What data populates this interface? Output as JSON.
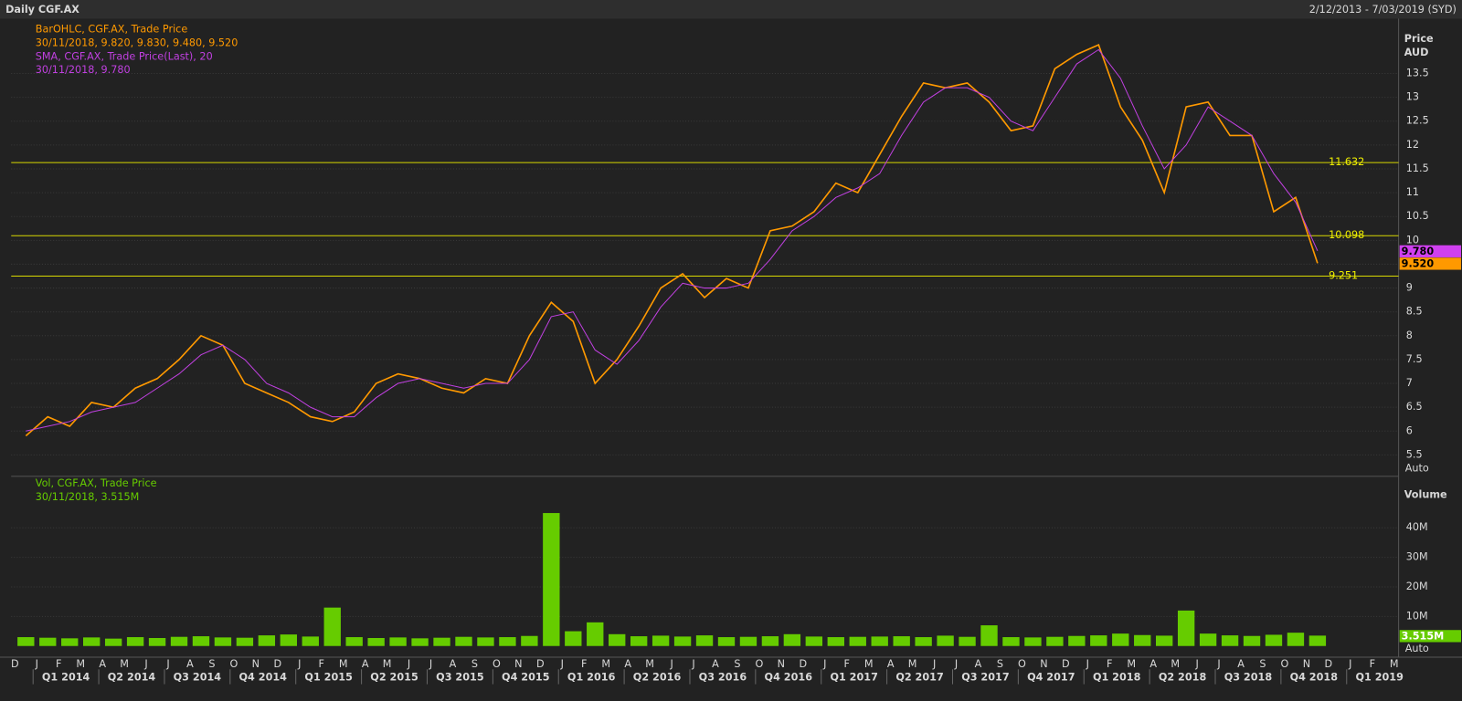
{
  "header": {
    "title": "Daily CGF.AX",
    "range": "2/12/2013 - 7/03/2019 (SYD)"
  },
  "chart_data": [
    {
      "type": "line",
      "axis_title": "Price",
      "axis_unit": "AUD",
      "auto": "Auto",
      "legend": [
        "BarOHLC, CGF.AX, Trade Price",
        "30/11/2018, 9.820, 9.830, 9.480, 9.520",
        "SMA, CGF.AX, Trade Price(Last),  20",
        "30/11/2018, 9.780"
      ],
      "x": [
        "2013-12",
        "2014-01",
        "2014-02",
        "2014-03",
        "2014-04",
        "2014-05",
        "2014-06",
        "2014-07",
        "2014-08",
        "2014-09",
        "2014-10",
        "2014-11",
        "2014-12",
        "2015-01",
        "2015-02",
        "2015-03",
        "2015-04",
        "2015-05",
        "2015-06",
        "2015-07",
        "2015-08",
        "2015-09",
        "2015-10",
        "2015-11",
        "2015-12",
        "2016-01",
        "2016-02",
        "2016-03",
        "2016-04",
        "2016-05",
        "2016-06",
        "2016-07",
        "2016-08",
        "2016-09",
        "2016-10",
        "2016-11",
        "2016-12",
        "2017-01",
        "2017-02",
        "2017-03",
        "2017-04",
        "2017-05",
        "2017-06",
        "2017-07",
        "2017-08",
        "2017-09",
        "2017-10",
        "2017-11",
        "2017-12",
        "2018-01",
        "2018-02",
        "2018-03",
        "2018-04",
        "2018-05",
        "2018-06",
        "2018-07",
        "2018-08",
        "2018-09",
        "2018-10",
        "2018-11"
      ],
      "series": [
        {
          "name": "BarOHLC",
          "color": "#ff9900",
          "values": [
            5.9,
            6.3,
            6.1,
            6.6,
            6.5,
            6.9,
            7.1,
            7.5,
            8.0,
            7.8,
            7.0,
            6.8,
            6.6,
            6.3,
            6.2,
            6.4,
            7.0,
            7.2,
            7.1,
            6.9,
            6.8,
            7.1,
            7.0,
            8.0,
            8.7,
            8.3,
            7.0,
            7.5,
            8.2,
            9.0,
            9.3,
            8.8,
            9.2,
            9.0,
            10.2,
            10.3,
            10.6,
            11.2,
            11.0,
            11.8,
            12.6,
            13.3,
            13.2,
            13.3,
            12.9,
            12.3,
            12.4,
            13.6,
            13.9,
            14.1,
            12.8,
            12.1,
            11.0,
            12.8,
            12.9,
            12.2,
            12.2,
            10.6,
            10.9,
            9.52
          ]
        },
        {
          "name": "SMA",
          "color": "#c040e0",
          "values": [
            6.0,
            6.1,
            6.2,
            6.4,
            6.5,
            6.6,
            6.9,
            7.2,
            7.6,
            7.8,
            7.5,
            7.0,
            6.8,
            6.5,
            6.3,
            6.3,
            6.7,
            7.0,
            7.1,
            7.0,
            6.9,
            7.0,
            7.0,
            7.5,
            8.4,
            8.5,
            7.7,
            7.4,
            7.9,
            8.6,
            9.1,
            9.0,
            9.0,
            9.1,
            9.6,
            10.2,
            10.5,
            10.9,
            11.1,
            11.4,
            12.2,
            12.9,
            13.2,
            13.2,
            13.0,
            12.5,
            12.3,
            13.0,
            13.7,
            14.0,
            13.4,
            12.4,
            11.5,
            12.0,
            12.8,
            12.5,
            12.2,
            11.4,
            10.8,
            9.78
          ]
        }
      ],
      "levels": [
        {
          "value": 11.632,
          "label": "11.632"
        },
        {
          "value": 10.098,
          "label": "10.098"
        },
        {
          "value": 9.251,
          "label": "9.251"
        }
      ],
      "last_tags": [
        {
          "value": 9.78,
          "label": "9.780",
          "color": "#d040f0"
        },
        {
          "value": 9.52,
          "label": "9.520",
          "color": "#ff9900"
        }
      ],
      "ylim": [
        5.07,
        14.65
      ],
      "yticks": [
        5.5,
        6,
        6.5,
        7,
        7.5,
        8,
        8.5,
        9,
        9.5,
        10,
        10.5,
        11,
        11.5,
        12,
        12.5,
        13,
        13.5
      ],
      "grid": true
    },
    {
      "type": "bar",
      "axis_title": "Volume",
      "auto": "Auto",
      "legend": [
        "Vol, CGF.AX, Trade Price",
        "30/11/2018, 3.515M"
      ],
      "color": "#66cc00",
      "values": [
        3000000,
        2800000,
        2600000,
        2900000,
        2500000,
        3000000,
        2700000,
        3100000,
        3300000,
        2900000,
        2800000,
        3600000,
        3900000,
        3200000,
        13000000,
        3000000,
        2700000,
        2900000,
        2600000,
        2800000,
        3100000,
        2900000,
        3000000,
        3400000,
        45000000,
        5000000,
        8000000,
        4000000,
        3300000,
        3500000,
        3200000,
        3600000,
        3000000,
        3100000,
        3300000,
        4000000,
        3200000,
        3000000,
        3100000,
        3200000,
        3300000,
        3000000,
        3500000,
        3100000,
        7000000,
        3000000,
        2900000,
        3100000,
        3400000,
        3600000,
        4200000,
        3700000,
        3500000,
        12000000,
        4200000,
        3600000,
        3400000,
        3800000,
        4500000,
        3515000
      ],
      "value_labels": {
        "59": "3.515M"
      },
      "ylim": [
        0,
        57100000
      ],
      "yticks": [
        {
          "value": 10000000,
          "label": "10M"
        },
        {
          "value": 20000000,
          "label": "20M"
        },
        {
          "value": 30000000,
          "label": "30M"
        },
        {
          "value": 40000000,
          "label": "40M"
        }
      ],
      "grid": true,
      "month_labels": [
        "D",
        "J",
        "F",
        "M",
        "A",
        "M",
        "J",
        "J",
        "A",
        "S",
        "O",
        "N",
        "D",
        "J",
        "F",
        "M",
        "A",
        "M",
        "J",
        "J",
        "A",
        "S",
        "O",
        "N",
        "D",
        "J",
        "F",
        "M",
        "A",
        "M",
        "J",
        "J",
        "A",
        "S",
        "O",
        "N",
        "D",
        "J",
        "F",
        "M",
        "A",
        "M",
        "J",
        "J",
        "A",
        "S",
        "O",
        "N",
        "D",
        "J",
        "F",
        "M",
        "A",
        "M",
        "J",
        "J",
        "A",
        "S",
        "O",
        "N",
        "D",
        "J",
        "F",
        "M"
      ],
      "quarter_labels": [
        "Q1 2014",
        "Q2 2014",
        "Q3 2014",
        "Q4 2014",
        "Q1 2015",
        "Q2 2015",
        "Q3 2015",
        "Q4 2015",
        "Q1 2016",
        "Q2 2016",
        "Q3 2016",
        "Q4 2016",
        "Q1 2017",
        "Q2 2017",
        "Q3 2017",
        "Q4 2017",
        "Q1 2018",
        "Q2 2018",
        "Q3 2018",
        "Q4 2018",
        "Q1 2019"
      ]
    }
  ]
}
